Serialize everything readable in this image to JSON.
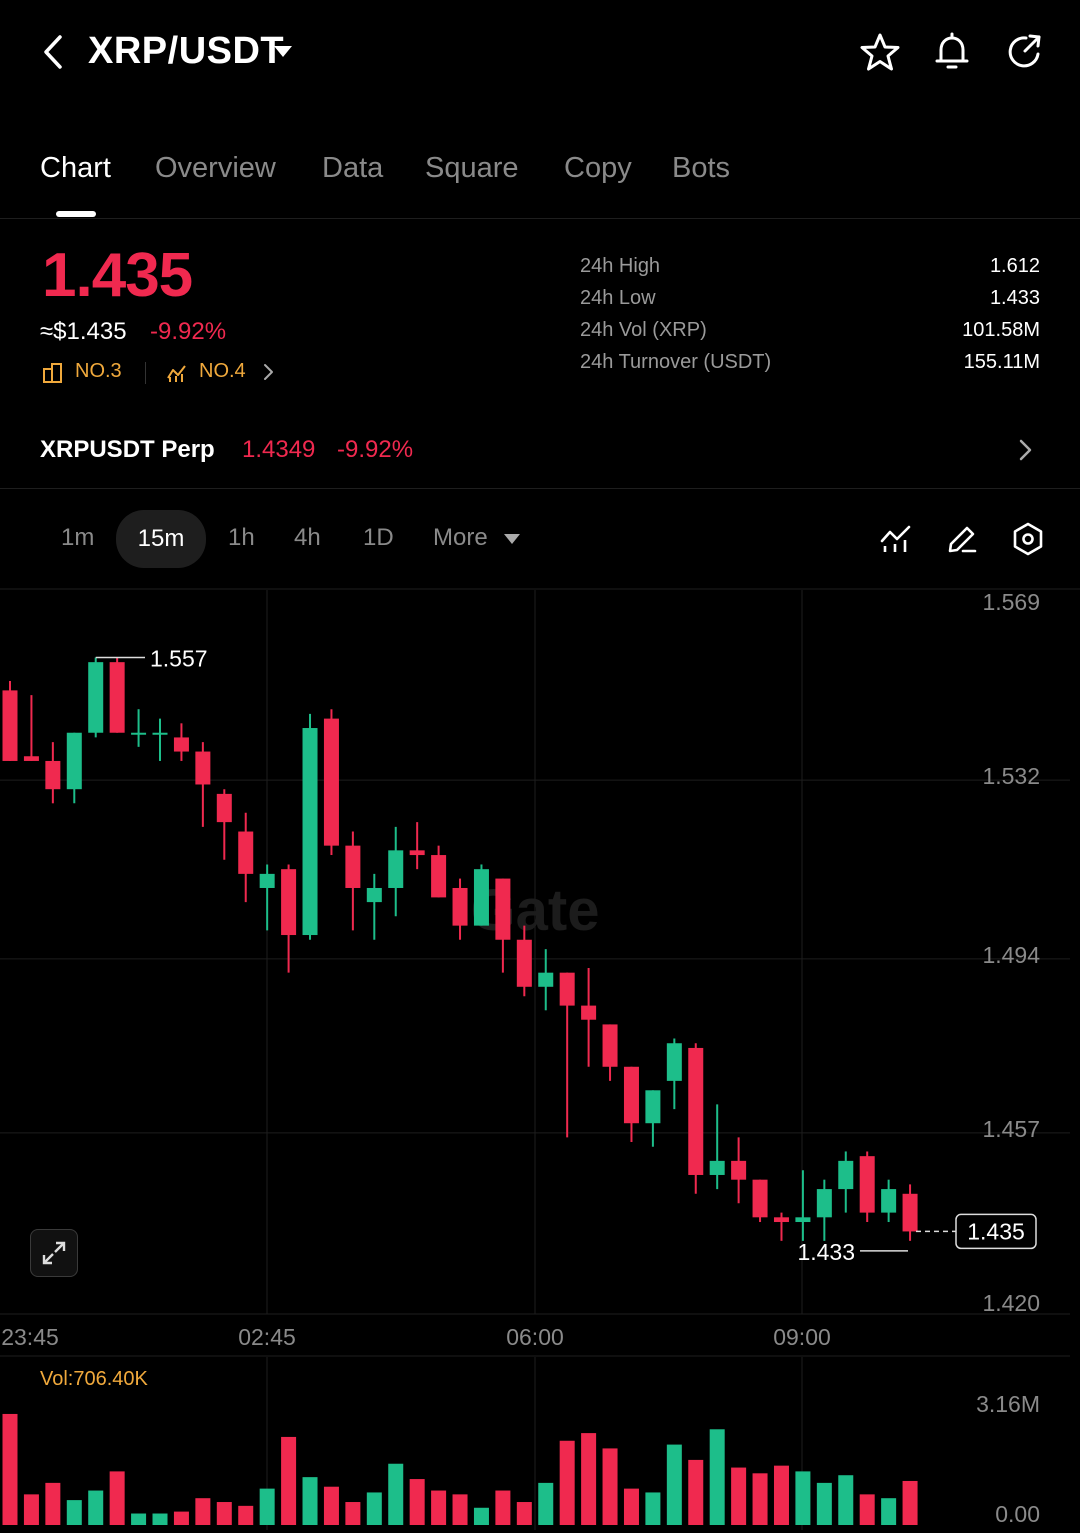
{
  "header": {
    "pair": "XRP/USDT",
    "icons": [
      "back-icon",
      "dropdown-caret-icon",
      "star-icon",
      "bell-icon",
      "share-icon"
    ]
  },
  "tabs": [
    {
      "label": "Chart",
      "active": true
    },
    {
      "label": "Overview",
      "active": false
    },
    {
      "label": "Data",
      "active": false
    },
    {
      "label": "Square",
      "active": false
    },
    {
      "label": "Copy",
      "active": false
    },
    {
      "label": "Bots",
      "active": false
    }
  ],
  "ticker": {
    "price": "1.435",
    "usd_price": "≈$1.435",
    "change_pct": "-9.92%",
    "rank_market": "NO.3",
    "rank_trend": "NO.4"
  },
  "stats": [
    {
      "label": "24h  High",
      "value": "1.612"
    },
    {
      "label": "24h  Low",
      "value": "1.433"
    },
    {
      "label": "24h  Vol (XRP)",
      "value": "101.58M"
    },
    {
      "label": "24h  Turnover (USDT)",
      "value": "155.11M"
    }
  ],
  "perp": {
    "name": "XRPUSDT Perp",
    "price": "1.4349",
    "change_pct": "-9.92%"
  },
  "intervals": [
    {
      "label": "1m",
      "active": false
    },
    {
      "label": "15m",
      "active": true
    },
    {
      "label": "1h",
      "active": false
    },
    {
      "label": "4h",
      "active": false
    },
    {
      "label": "1D",
      "active": false
    },
    {
      "label": "More",
      "active": false
    }
  ],
  "colors": {
    "up": "#1dbe8a",
    "down": "#f0294f",
    "accent": "#f0a93c",
    "grid": "#1e1e1e"
  },
  "chart_data": [
    {
      "type": "candlestick",
      "price_axis_ticks": [
        "1.569",
        "1.532",
        "1.494",
        "1.457",
        "1.420"
      ],
      "price_axis_values": [
        1.569,
        1.532,
        1.494,
        1.457,
        1.42
      ],
      "time_axis_labels": [
        "23:45",
        "02:45",
        "06:00",
        "09:00"
      ],
      "high_marker": "1.557",
      "low_marker": "1.433",
      "current_price_tag": "1.435",
      "watermark": "Gate",
      "candles": [
        {
          "o": 1.55,
          "h": 1.552,
          "l": 1.535,
          "c": 1.535
        },
        {
          "o": 1.536,
          "h": 1.549,
          "l": 1.535,
          "c": 1.535
        },
        {
          "o": 1.535,
          "h": 1.539,
          "l": 1.526,
          "c": 1.529
        },
        {
          "o": 1.529,
          "h": 1.541,
          "l": 1.526,
          "c": 1.541
        },
        {
          "o": 1.541,
          "h": 1.557,
          "l": 1.54,
          "c": 1.556
        },
        {
          "o": 1.556,
          "h": 1.557,
          "l": 1.541,
          "c": 1.541
        },
        {
          "o": 1.541,
          "h": 1.546,
          "l": 1.538,
          "c": 1.541
        },
        {
          "o": 1.541,
          "h": 1.544,
          "l": 1.535,
          "c": 1.541
        },
        {
          "o": 1.54,
          "h": 1.543,
          "l": 1.535,
          "c": 1.537
        },
        {
          "o": 1.537,
          "h": 1.539,
          "l": 1.521,
          "c": 1.53
        },
        {
          "o": 1.528,
          "h": 1.529,
          "l": 1.514,
          "c": 1.522
        },
        {
          "o": 1.52,
          "h": 1.524,
          "l": 1.505,
          "c": 1.511
        },
        {
          "o": 1.508,
          "h": 1.513,
          "l": 1.499,
          "c": 1.511
        },
        {
          "o": 1.512,
          "h": 1.513,
          "l": 1.49,
          "c": 1.498
        },
        {
          "o": 1.498,
          "h": 1.545,
          "l": 1.497,
          "c": 1.542
        },
        {
          "o": 1.544,
          "h": 1.546,
          "l": 1.515,
          "c": 1.517
        },
        {
          "o": 1.517,
          "h": 1.52,
          "l": 1.499,
          "c": 1.508
        },
        {
          "o": 1.505,
          "h": 1.511,
          "l": 1.497,
          "c": 1.508
        },
        {
          "o": 1.508,
          "h": 1.521,
          "l": 1.502,
          "c": 1.516
        },
        {
          "o": 1.516,
          "h": 1.522,
          "l": 1.512,
          "c": 1.515
        },
        {
          "o": 1.515,
          "h": 1.517,
          "l": 1.506,
          "c": 1.506
        },
        {
          "o": 1.508,
          "h": 1.51,
          "l": 1.497,
          "c": 1.5
        },
        {
          "o": 1.5,
          "h": 1.513,
          "l": 1.5,
          "c": 1.512
        },
        {
          "o": 1.51,
          "h": 1.51,
          "l": 1.49,
          "c": 1.497
        },
        {
          "o": 1.497,
          "h": 1.5,
          "l": 1.485,
          "c": 1.487
        },
        {
          "o": 1.487,
          "h": 1.495,
          "l": 1.482,
          "c": 1.49
        },
        {
          "o": 1.49,
          "h": 1.49,
          "l": 1.455,
          "c": 1.483
        },
        {
          "o": 1.483,
          "h": 1.491,
          "l": 1.47,
          "c": 1.48
        },
        {
          "o": 1.479,
          "h": 1.479,
          "l": 1.467,
          "c": 1.47
        },
        {
          "o": 1.47,
          "h": 1.47,
          "l": 1.454,
          "c": 1.458
        },
        {
          "o": 1.458,
          "h": 1.465,
          "l": 1.453,
          "c": 1.465
        },
        {
          "o": 1.467,
          "h": 1.476,
          "l": 1.461,
          "c": 1.475
        },
        {
          "o": 1.474,
          "h": 1.475,
          "l": 1.443,
          "c": 1.447
        },
        {
          "o": 1.447,
          "h": 1.462,
          "l": 1.444,
          "c": 1.45
        },
        {
          "o": 1.45,
          "h": 1.455,
          "l": 1.441,
          "c": 1.446
        },
        {
          "o": 1.446,
          "h": 1.446,
          "l": 1.437,
          "c": 1.438
        },
        {
          "o": 1.438,
          "h": 1.439,
          "l": 1.433,
          "c": 1.437
        },
        {
          "o": 1.437,
          "h": 1.448,
          "l": 1.433,
          "c": 1.438
        },
        {
          "o": 1.438,
          "h": 1.446,
          "l": 1.433,
          "c": 1.444
        },
        {
          "o": 1.444,
          "h": 1.452,
          "l": 1.439,
          "c": 1.45
        },
        {
          "o": 1.451,
          "h": 1.452,
          "l": 1.437,
          "c": 1.439
        },
        {
          "o": 1.439,
          "h": 1.446,
          "l": 1.437,
          "c": 1.444
        },
        {
          "o": 1.443,
          "h": 1.445,
          "l": 1.433,
          "c": 1.435
        }
      ]
    },
    {
      "type": "bar",
      "series_label": "Vol:706.40K",
      "axis_ticks": [
        "3.16M",
        "0.00"
      ],
      "ylim": [
        0,
        3.16
      ],
      "unit": "M",
      "values": [
        2.9,
        0.8,
        1.1,
        0.65,
        0.9,
        1.4,
        0.3,
        0.3,
        0.35,
        0.7,
        0.6,
        0.5,
        0.95,
        2.3,
        1.25,
        1.0,
        0.6,
        0.85,
        1.6,
        1.2,
        0.9,
        0.8,
        0.45,
        0.9,
        0.6,
        1.1,
        2.2,
        2.4,
        2.0,
        0.95,
        0.85,
        2.1,
        1.7,
        2.5,
        1.5,
        1.35,
        1.55,
        1.4,
        1.1,
        1.3,
        0.8,
        0.7,
        1.15
      ]
    }
  ]
}
